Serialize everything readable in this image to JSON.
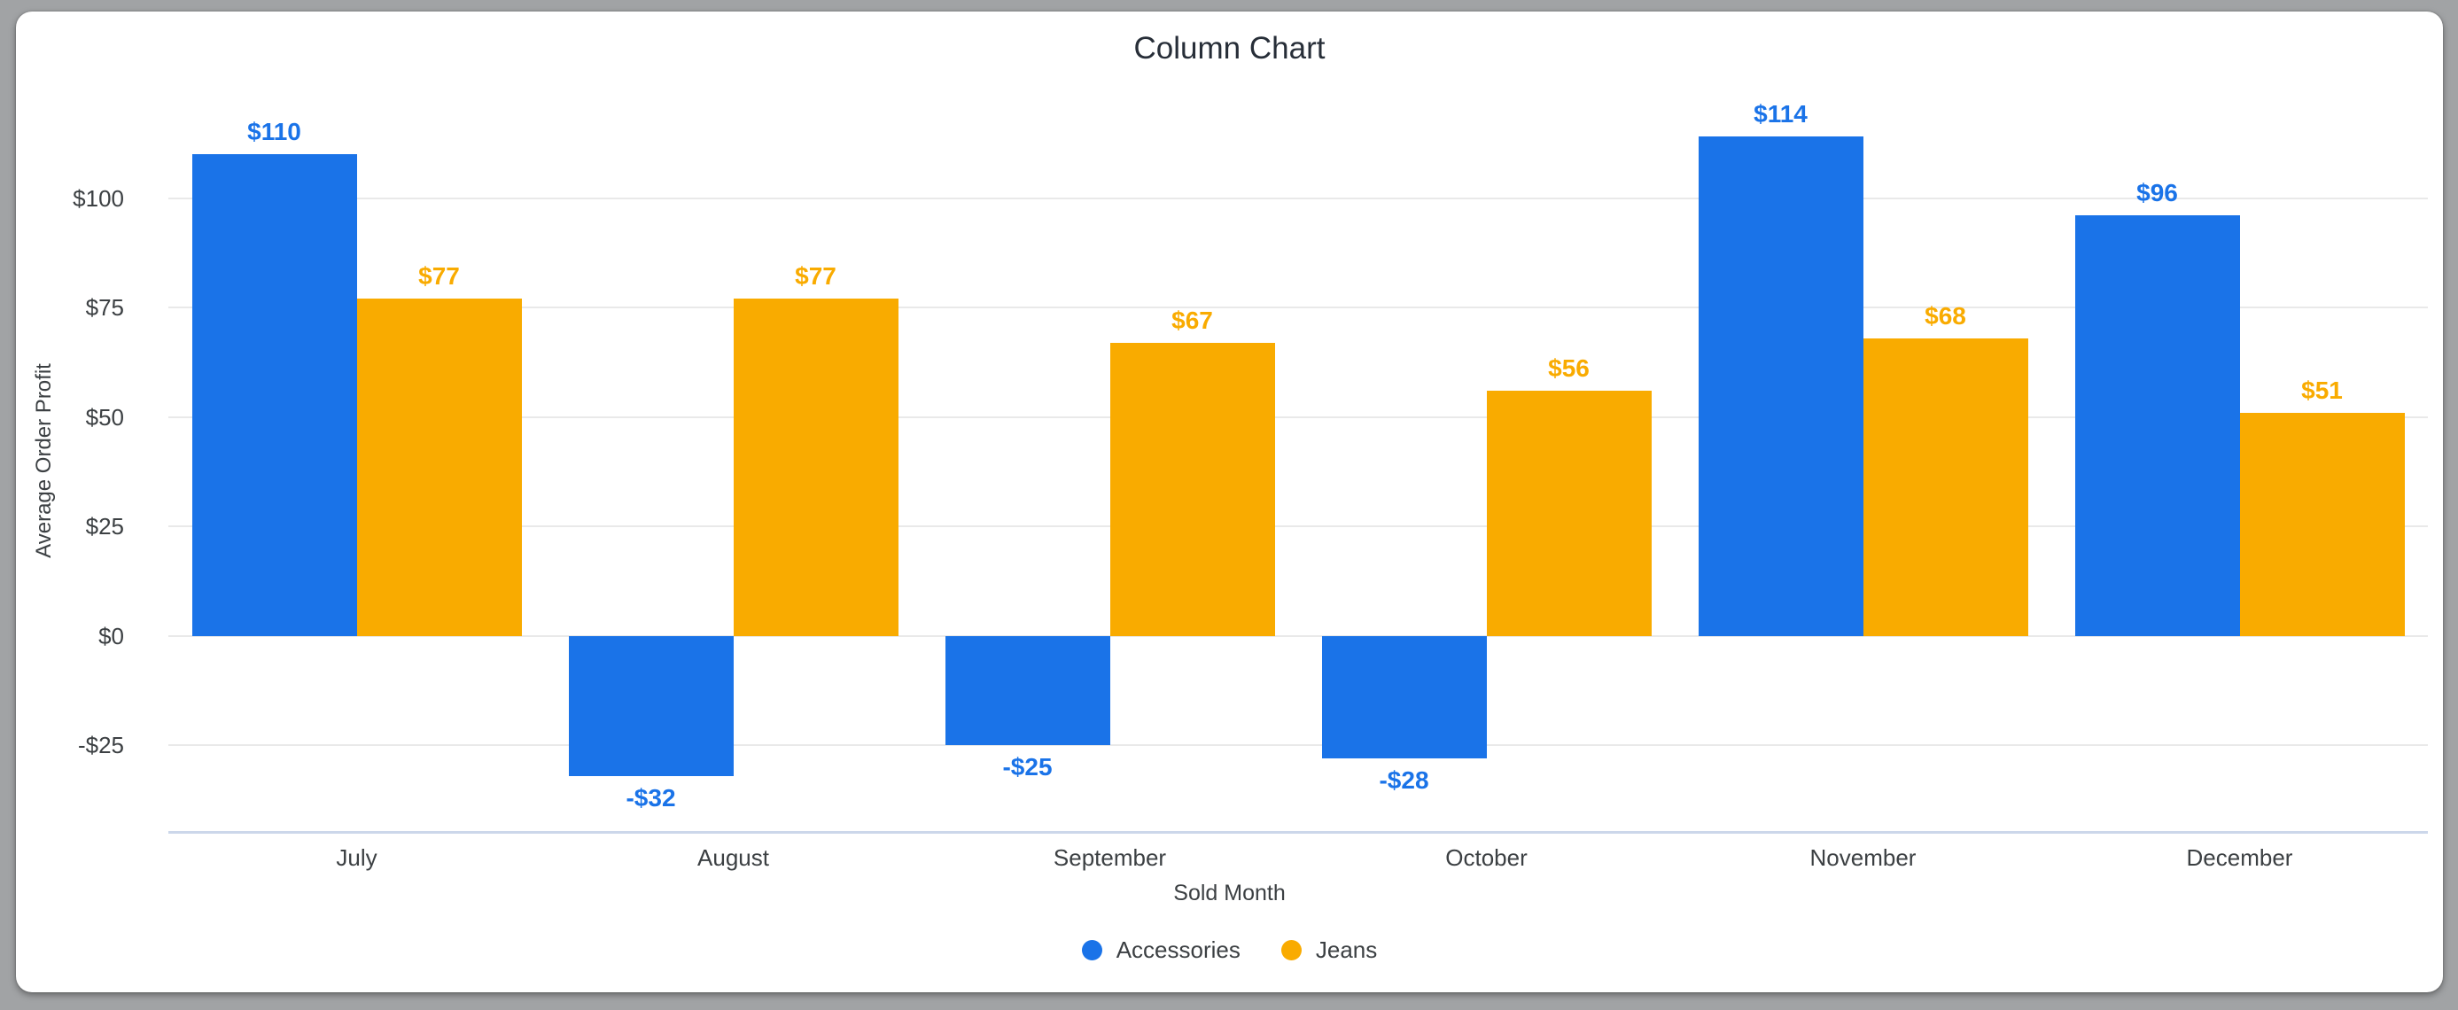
{
  "frame": {
    "background_color": "#a1a3a5",
    "card_color": "#ffffff"
  },
  "chart_data": {
    "type": "bar",
    "title": "Column Chart",
    "xlabel": "Sold Month",
    "ylabel": "Average Order Profit",
    "categories": [
      "July",
      "August",
      "September",
      "October",
      "November",
      "December"
    ],
    "series": [
      {
        "name": "Accessories",
        "color": "#1a73e8",
        "values": [
          110,
          -32,
          -25,
          -28,
          114,
          96
        ],
        "labels": [
          "$110",
          "-$32",
          "-$25",
          "-$28",
          "$114",
          "$96"
        ]
      },
      {
        "name": "Jeans",
        "color": "#f9ab00",
        "values": [
          77,
          77,
          67,
          56,
          68,
          51
        ],
        "labels": [
          "$77",
          "$77",
          "$67",
          "$56",
          "$68",
          "$51"
        ]
      }
    ],
    "y_ticks": [
      {
        "value": 100,
        "label": "$100"
      },
      {
        "value": 75,
        "label": "$75"
      },
      {
        "value": 50,
        "label": "$50"
      },
      {
        "value": 25,
        "label": "$25"
      },
      {
        "value": 0,
        "label": "$0"
      },
      {
        "value": -25,
        "label": "-$25"
      }
    ],
    "ylim": [
      -45,
      125
    ],
    "grid": true,
    "gridline_color": "#e9e9e9",
    "baseline_color": "#ccd7ea",
    "legend_position": "bottom",
    "legend": [
      "Accessories",
      "Jeans"
    ]
  }
}
